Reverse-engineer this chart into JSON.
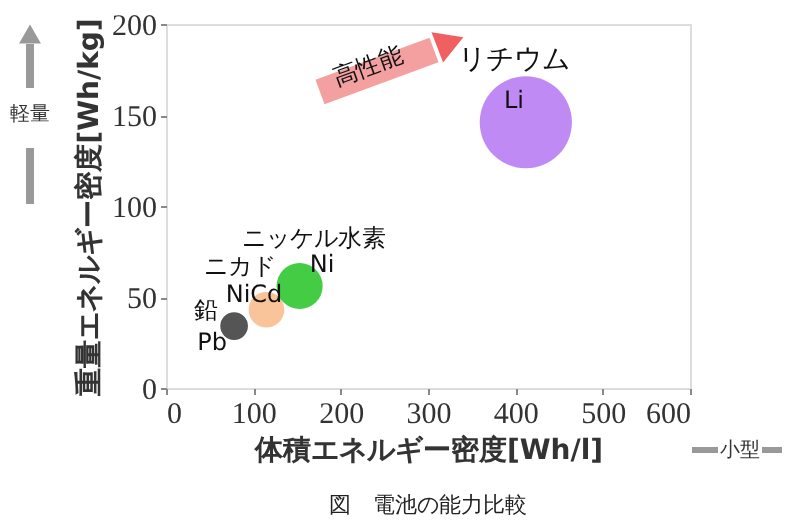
{
  "chart_data": {
    "type": "bubble",
    "xlabel": "体積エネルギー密度[Wh/l]",
    "ylabel": "重量エネルギー密度[Wh/kg]",
    "series": [
      {
        "x": [
          78,
          115,
          153,
          412
        ],
        "values": [
          34,
          43,
          56,
          146
        ],
        "sizes": [
          0.09,
          0.15,
          0.25,
          1
        ],
        "colors": [
          "#555555",
          "#f9c49a",
          "#44cc44",
          "#c08af5"
        ]
      }
    ],
    "xlim": [
      0,
      600
    ],
    "xticks": [
      0,
      100,
      200,
      300,
      400,
      500,
      600
    ],
    "ylim": [
      0,
      200
    ],
    "yticks": [
      0,
      50,
      100,
      150,
      200
    ],
    "grid": false,
    "annotations": [
      "高性能",
      "軽量",
      "小型",
      "図　電池の能力比較",
      "鉛",
      "Pb",
      "ニカド",
      "NiCd",
      "ニッケル水素",
      "Ni",
      "リチウム",
      "Li"
    ]
  }
}
